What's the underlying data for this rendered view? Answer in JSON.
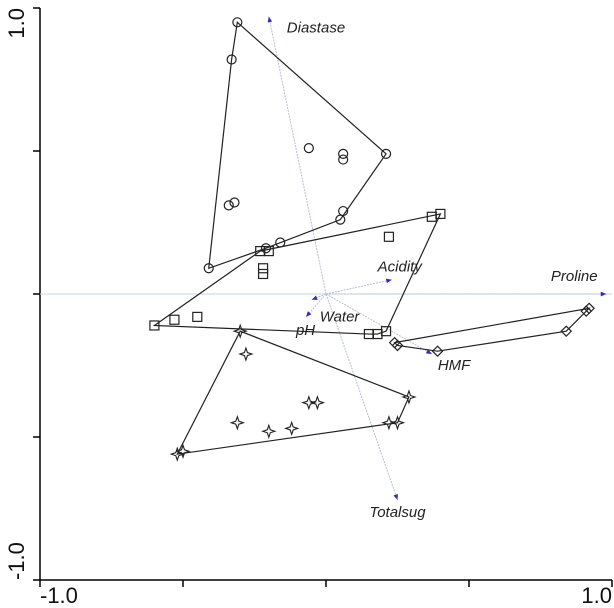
{
  "chart_data": {
    "type": "biplot",
    "xlim": [
      -1,
      1
    ],
    "ylim": [
      -1,
      1
    ],
    "xticks": [
      {
        "value": -1,
        "label": "-1.0"
      },
      {
        "value": 1,
        "label": "1.0"
      }
    ],
    "yticks": [
      {
        "value": -1,
        "label": "-1.0"
      },
      {
        "value": 1,
        "label": "1.0"
      }
    ],
    "xminor_ticks": [
      -0.5,
      0,
      0.5
    ],
    "yminor_ticks": [
      -0.5,
      0,
      0.5
    ],
    "color": "#222222",
    "loading_color": "#2a2ad0",
    "series": [
      {
        "marker": "circle",
        "x": [
          -0.31,
          -0.33,
          -0.06,
          0.06,
          0.06,
          0.21,
          -0.34,
          -0.32,
          0.06,
          0.05,
          -0.16,
          -0.21,
          -0.41
        ],
        "y": [
          0.95,
          0.82,
          0.51,
          0.49,
          0.47,
          0.49,
          0.31,
          0.32,
          0.29,
          0.26,
          0.18,
          0.16,
          0.09
        ]
      },
      {
        "marker": "square",
        "x": [
          -0.6,
          -0.53,
          -0.45,
          -0.23,
          -0.2,
          -0.22,
          -0.22,
          0.22,
          0.37,
          0.4,
          0.21,
          0.15,
          0.18
        ],
        "y": [
          -0.11,
          -0.09,
          -0.08,
          0.15,
          0.15,
          0.09,
          0.07,
          0.2,
          0.27,
          0.28,
          -0.13,
          -0.14,
          -0.14
        ]
      },
      {
        "marker": "diamond",
        "x": [
          0.24,
          0.25,
          0.39,
          0.84,
          0.91,
          0.92
        ],
        "y": [
          -0.17,
          -0.18,
          -0.2,
          -0.13,
          -0.06,
          -0.05
        ]
      },
      {
        "marker": "star",
        "x": [
          -0.3,
          -0.28,
          -0.31,
          -0.2,
          -0.12,
          -0.06,
          -0.03,
          0.22,
          0.25,
          0.29,
          -0.52,
          -0.5
        ],
        "y": [
          -0.13,
          -0.21,
          -0.45,
          -0.48,
          -0.47,
          -0.38,
          -0.38,
          -0.45,
          -0.45,
          -0.36,
          -0.56,
          -0.55
        ]
      }
    ],
    "loadings": [
      {
        "label": "Diastase",
        "x": -0.2,
        "y": 0.97
      },
      {
        "label": "Totalsug",
        "x": 0.25,
        "y": -0.72
      },
      {
        "label": "Acidity",
        "x": 0.23,
        "y": 0.05
      },
      {
        "label": "Proline",
        "x": 0.98,
        "y": 0.0
      },
      {
        "label": "Water",
        "x": -0.05,
        "y": -0.02
      },
      {
        "label": "pH",
        "x": -0.07,
        "y": -0.08
      },
      {
        "label": "HMF",
        "x": 0.37,
        "y": -0.21
      }
    ]
  }
}
